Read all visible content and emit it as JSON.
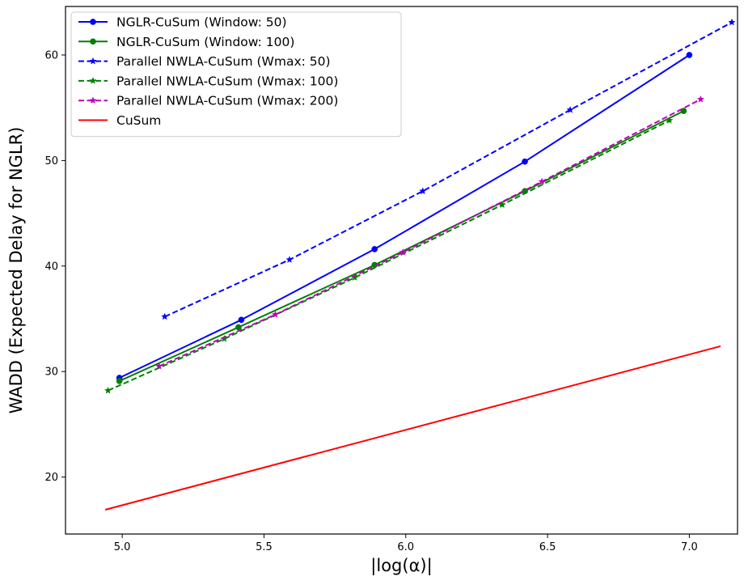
{
  "chart_data": {
    "type": "line",
    "title": "",
    "xlabel": "|log(α)|",
    "ylabel": "WADD (Expected Delay for NGLR)",
    "xlim": [
      4.8,
      7.17
    ],
    "ylim": [
      14.6,
      64.6
    ],
    "xticks": [
      5.0,
      5.5,
      6.0,
      6.5,
      7.0
    ],
    "xtick_labels": [
      "5.0",
      "5.5",
      "6.0",
      "6.5",
      "7.0"
    ],
    "yticks": [
      20,
      30,
      40,
      50,
      60
    ],
    "ytick_labels": [
      "20",
      "30",
      "40",
      "50",
      "60"
    ],
    "grid": false,
    "legend_position": "upper-left",
    "series": [
      {
        "name": "NGLR-CuSum (Window: 50)",
        "color": "#0000ff",
        "line_style": "solid",
        "marker": "circle",
        "x": [
          4.99,
          5.42,
          5.89,
          6.42,
          7.0
        ],
        "y": [
          29.4,
          34.9,
          41.6,
          49.9,
          60.0
        ]
      },
      {
        "name": "NGLR-CuSum (Window: 100)",
        "color": "#008000",
        "line_style": "solid",
        "marker": "circle",
        "x": [
          4.99,
          5.41,
          5.89,
          6.42,
          6.98
        ],
        "y": [
          29.1,
          34.2,
          40.1,
          47.1,
          54.7
        ]
      },
      {
        "name": "Parallel NWLA-CuSum (Wmax: 50)",
        "color": "#0000ff",
        "line_style": "dashed",
        "marker": "star",
        "x": [
          5.15,
          5.59,
          6.06,
          6.58,
          7.15
        ],
        "y": [
          35.2,
          40.6,
          47.1,
          54.8,
          63.1
        ]
      },
      {
        "name": "Parallel NWLA-CuSum (Wmax: 100)",
        "color": "#008000",
        "line_style": "dashed",
        "marker": "star",
        "x": [
          4.95,
          5.36,
          5.82,
          6.34,
          6.93
        ],
        "y": [
          28.2,
          33.1,
          38.9,
          45.8,
          53.8
        ]
      },
      {
        "name": "Parallel NWLA-CuSum (Wmax: 200)",
        "color": "#bf00bf",
        "line_style": "dashed",
        "marker": "star",
        "x": [
          5.13,
          5.54,
          5.99,
          6.48,
          7.04
        ],
        "y": [
          30.5,
          35.4,
          41.3,
          48.0,
          55.8
        ]
      },
      {
        "name": "CuSum",
        "color": "#ff0000",
        "line_style": "solid",
        "marker": "none",
        "x": [
          4.94,
          7.11
        ],
        "y": [
          16.9,
          32.4
        ]
      }
    ]
  }
}
